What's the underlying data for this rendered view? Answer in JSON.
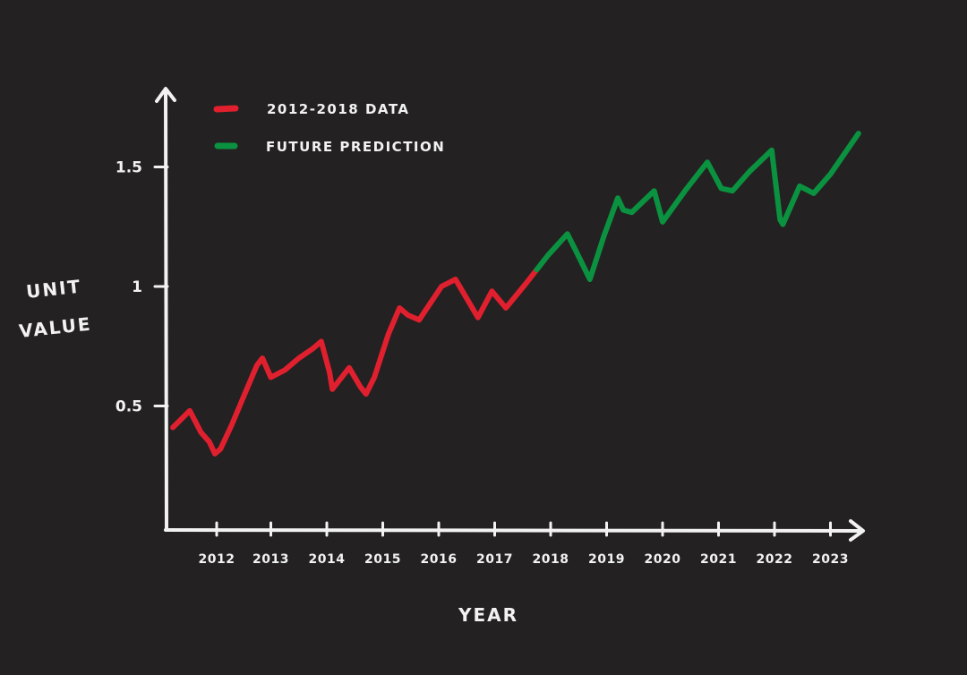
{
  "chart_data": {
    "type": "line",
    "xlabel": "YEAR",
    "ylabel": [
      "UNIT",
      "VALUE"
    ],
    "x_ticks": [
      "2012",
      "2013",
      "2014",
      "2015",
      "2016",
      "2017",
      "2018",
      "2019",
      "2020",
      "2021",
      "2022",
      "2023"
    ],
    "y_ticks": [
      "0.5",
      "1",
      "1.5"
    ],
    "y_tick_values": [
      0.5,
      1,
      1.5
    ],
    "xlim": [
      2011.2,
      2024.0
    ],
    "ylim": [
      0.0,
      1.8
    ],
    "series": [
      {
        "name": "2012-2018 DATA",
        "color": "#e0202e",
        "points": [
          [
            2011.25,
            0.41
          ],
          [
            2011.55,
            0.48
          ],
          [
            2011.75,
            0.39
          ],
          [
            2011.9,
            0.35
          ],
          [
            2012.0,
            0.3
          ],
          [
            2012.1,
            0.32
          ],
          [
            2012.3,
            0.42
          ],
          [
            2012.55,
            0.56
          ],
          [
            2012.75,
            0.67
          ],
          [
            2012.85,
            0.7
          ],
          [
            2013.0,
            0.62
          ],
          [
            2013.25,
            0.65
          ],
          [
            2013.5,
            0.7
          ],
          [
            2013.75,
            0.74
          ],
          [
            2013.9,
            0.77
          ],
          [
            2014.05,
            0.64
          ],
          [
            2014.1,
            0.57
          ],
          [
            2014.4,
            0.66
          ],
          [
            2014.6,
            0.58
          ],
          [
            2014.7,
            0.55
          ],
          [
            2014.85,
            0.62
          ],
          [
            2015.1,
            0.8
          ],
          [
            2015.3,
            0.91
          ],
          [
            2015.45,
            0.88
          ],
          [
            2015.65,
            0.86
          ],
          [
            2015.85,
            0.93
          ],
          [
            2016.05,
            1.0
          ],
          [
            2016.3,
            1.03
          ],
          [
            2016.45,
            0.97
          ],
          [
            2016.7,
            0.87
          ],
          [
            2016.95,
            0.98
          ],
          [
            2017.2,
            0.91
          ],
          [
            2017.55,
            1.01
          ],
          [
            2017.75,
            1.07
          ]
        ]
      },
      {
        "name": "FUTURE PREDICTION",
        "color": "#0b9240",
        "points": [
          [
            2017.75,
            1.07
          ],
          [
            2017.95,
            1.13
          ],
          [
            2018.3,
            1.22
          ],
          [
            2018.45,
            1.15
          ],
          [
            2018.7,
            1.03
          ],
          [
            2018.95,
            1.21
          ],
          [
            2019.2,
            1.37
          ],
          [
            2019.3,
            1.32
          ],
          [
            2019.45,
            1.31
          ],
          [
            2019.85,
            1.4
          ],
          [
            2020.0,
            1.27
          ],
          [
            2020.4,
            1.4
          ],
          [
            2020.8,
            1.52
          ],
          [
            2021.05,
            1.41
          ],
          [
            2021.25,
            1.4
          ],
          [
            2021.55,
            1.48
          ],
          [
            2021.95,
            1.57
          ],
          [
            2022.1,
            1.28
          ],
          [
            2022.15,
            1.26
          ],
          [
            2022.45,
            1.42
          ],
          [
            2022.7,
            1.39
          ],
          [
            2023.0,
            1.47
          ],
          [
            2023.5,
            1.64
          ]
        ]
      }
    ]
  }
}
